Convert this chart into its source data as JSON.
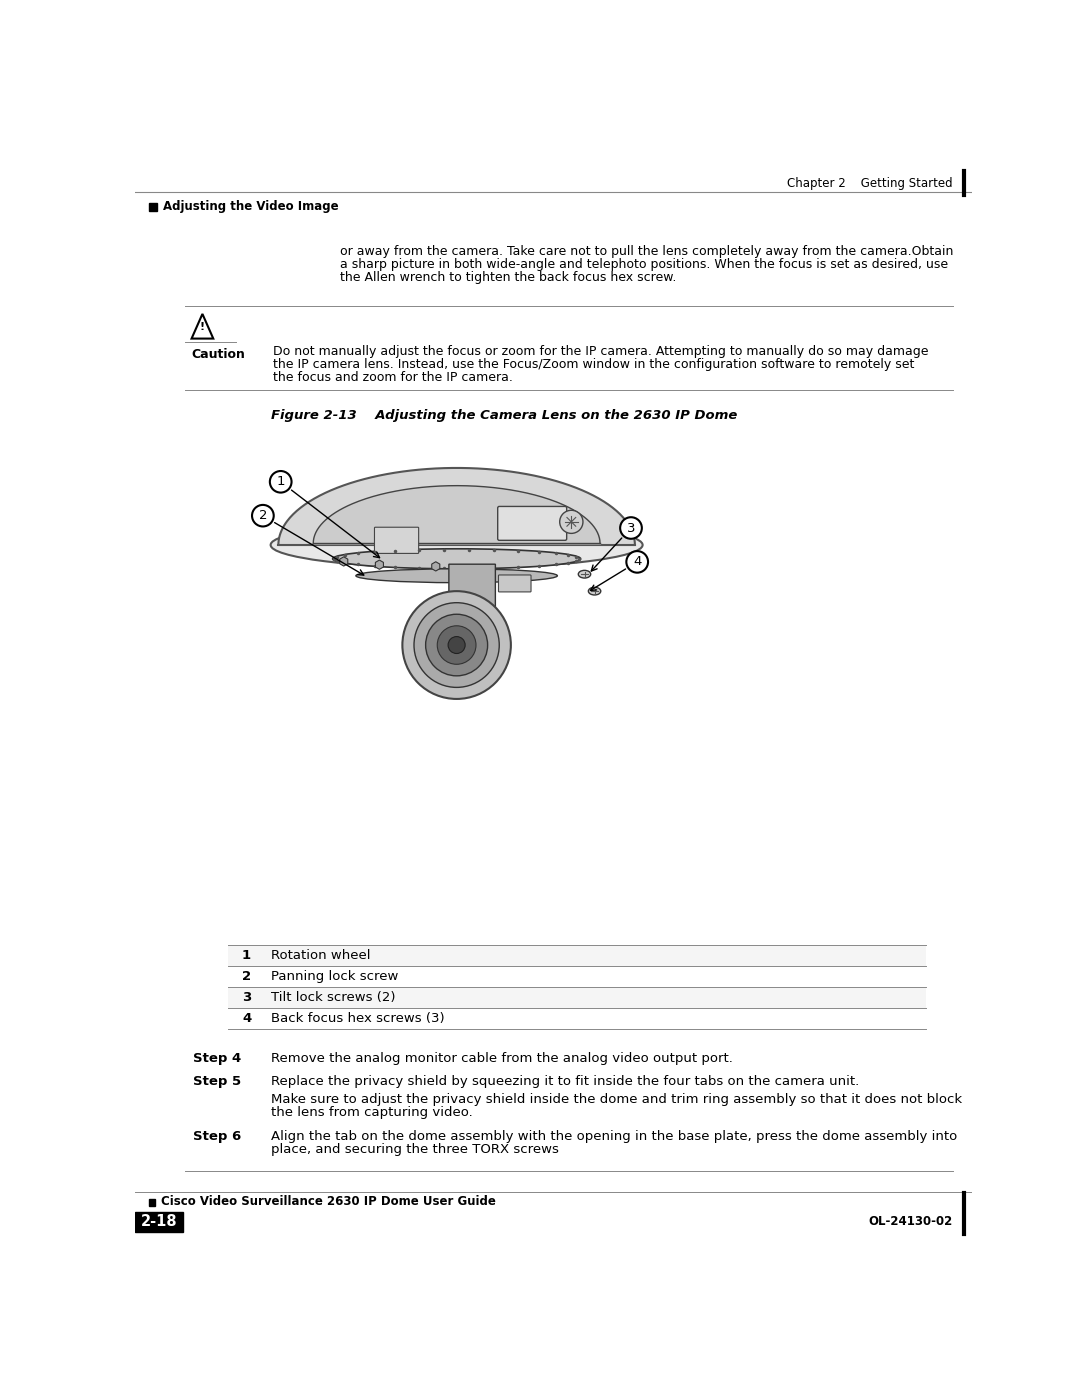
{
  "page_bg": "#ffffff",
  "header_chapter": "Chapter 2    Getting Started",
  "header_section": "Adjusting the Video Image",
  "figure_title": "Figure 2-13    Adjusting the Camera Lens on the 2630 IP Dome",
  "caution_title": "Caution",
  "caution_text": "Do not manually adjust the focus or zoom for the IP camera. Attempting to manually do so may damage\nthe IP camera lens. Instead, use the Focus/Zoom window in the configuration software to remotely set\nthe focus and zoom for the IP camera.",
  "intro_text": "or away from the camera. Take care not to pull the lens completely away from the camera.Obtain\na sharp picture in both wide-angle and telephoto positions. When the focus is set as desired, use\nthe Allen wrench to tighten the back focus hex screw.",
  "table_rows": [
    [
      "1",
      "Rotation wheel"
    ],
    [
      "2",
      "Panning lock screw"
    ],
    [
      "3",
      "Tilt lock screws (2)"
    ],
    [
      "4",
      "Back focus hex screws (3)"
    ]
  ],
  "steps": [
    {
      "label": "Step 4",
      "text": "Remove the analog monitor cable from the analog video output port.",
      "continuation": ""
    },
    {
      "label": "Step 5",
      "text": "Replace the privacy shield by squeezing it to fit inside the four tabs on the camera unit.",
      "continuation": "Make sure to adjust the privacy shield inside the dome and trim ring assembly so that it does not block\nthe lens from capturing video."
    },
    {
      "label": "Step 6",
      "text": "Align the tab on the dome assembly with the opening in the base plate, press the dome assembly into\nplace, and securing the three TORX screws",
      "continuation": ""
    }
  ],
  "footer_left": "Cisco Video Surveillance 2630 IP Dome User Guide",
  "footer_page": "2-18",
  "footer_right": "OL-24130-02"
}
